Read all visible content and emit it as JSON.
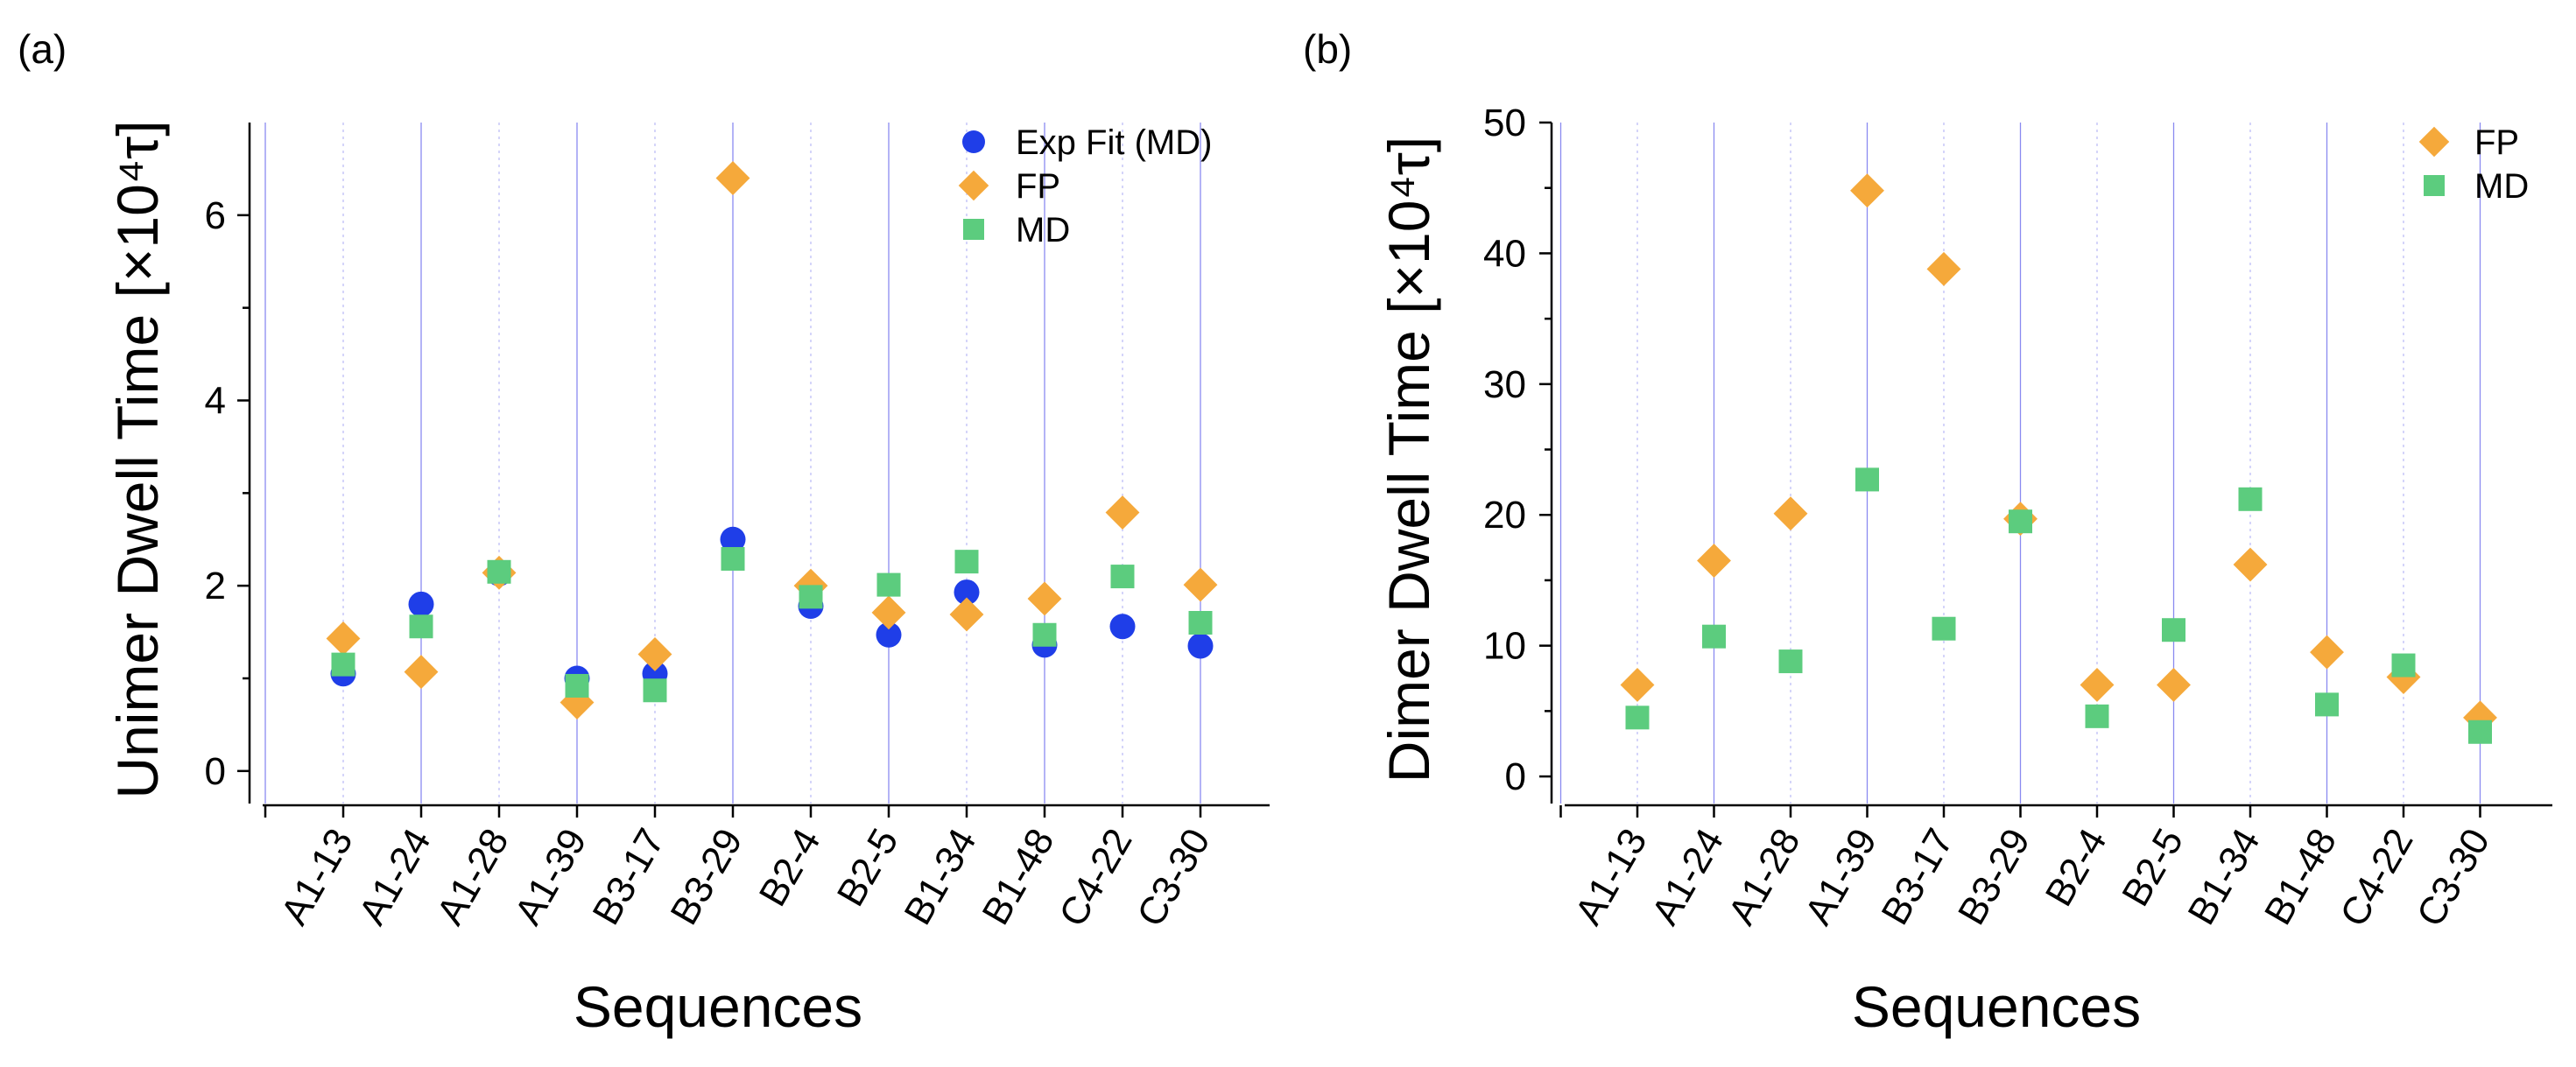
{
  "colors": {
    "exp_fit": "#1f3ee8",
    "fp": "#f5a93b",
    "md": "#5ccc7e",
    "grid": "#8a8af0"
  },
  "chart_data": [
    {
      "panel_label": "(a)",
      "type": "scatter",
      "title": "",
      "xlabel": "Sequences",
      "ylabel": "Unimer Dwell Time [×10⁴τ]",
      "ylim": [
        -0.2,
        7
      ],
      "yticks": [
        0,
        2,
        4,
        6
      ],
      "legend_position": "top-right",
      "categories": [
        "A1-13",
        "A1-24",
        "A1-28",
        "A1-39",
        "B3-17",
        "B3-29",
        "B2-4",
        "B2-5",
        "B1-34",
        "B1-48",
        "C4-22",
        "C3-30"
      ],
      "series": [
        {
          "name": "Exp Fit (MD)",
          "marker": "circle",
          "color_key": "exp_fit",
          "values": [
            1.05,
            1.8,
            2.13,
            1.0,
            1.05,
            2.5,
            1.78,
            1.47,
            1.93,
            1.36,
            1.56,
            1.35
          ]
        },
        {
          "name": "FP",
          "marker": "diamond",
          "color_key": "fp",
          "values": [
            1.43,
            1.07,
            2.14,
            0.74,
            1.26,
            6.4,
            2.0,
            1.71,
            1.69,
            1.86,
            2.79,
            2.01
          ]
        },
        {
          "name": "MD",
          "marker": "square",
          "color_key": "md",
          "values": [
            1.15,
            1.56,
            2.15,
            0.92,
            0.87,
            2.29,
            1.88,
            2.01,
            2.26,
            1.47,
            2.1,
            1.6
          ]
        }
      ]
    },
    {
      "panel_label": "(b)",
      "type": "scatter",
      "title": "",
      "xlabel": "Sequences",
      "ylabel": "Dimer Dwell Time [×10⁴τ]",
      "ylim": [
        -1,
        50
      ],
      "yticks": [
        0,
        10,
        20,
        30,
        40,
        50
      ],
      "legend_position": "top-right",
      "categories": [
        "A1-13",
        "A1-24",
        "A1-28",
        "A1-39",
        "B3-17",
        "B3-29",
        "B2-4",
        "B2-5",
        "B1-34",
        "B1-48",
        "C4-22",
        "C3-30"
      ],
      "series": [
        {
          "name": "FP",
          "marker": "diamond",
          "color_key": "fp",
          "values": [
            7.0,
            16.5,
            20.1,
            44.8,
            38.8,
            19.7,
            7.0,
            7.0,
            16.2,
            9.5,
            7.6,
            4.5
          ]
        },
        {
          "name": "MD",
          "marker": "square",
          "color_key": "md",
          "values": [
            4.5,
            10.7,
            8.8,
            22.7,
            11.3,
            19.5,
            4.6,
            11.2,
            21.2,
            5.5,
            8.5,
            3.4
          ]
        }
      ]
    }
  ]
}
